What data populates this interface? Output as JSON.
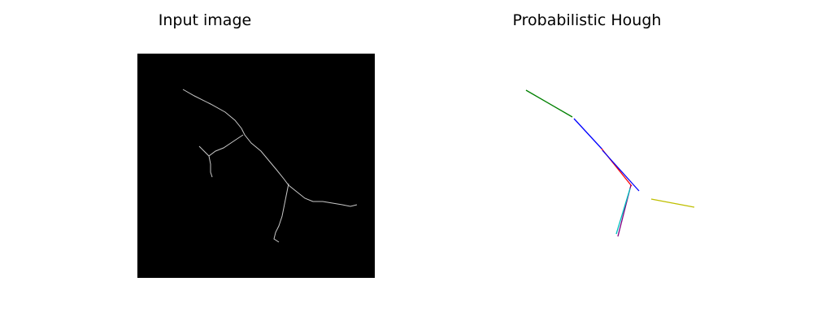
{
  "panels": {
    "left": {
      "title": "Input image",
      "background": "#000000",
      "edge_color": "#c8c8c8"
    },
    "right": {
      "title": "Probabilistic Hough"
    }
  },
  "hough_segments": [
    {
      "color": "#008000"
    },
    {
      "color": "#0000ff"
    },
    {
      "color": "#ff0000"
    },
    {
      "color": "#0000ff"
    },
    {
      "color": "#800080"
    },
    {
      "color": "#00bfbf"
    },
    {
      "color": "#bfbf00"
    }
  ]
}
